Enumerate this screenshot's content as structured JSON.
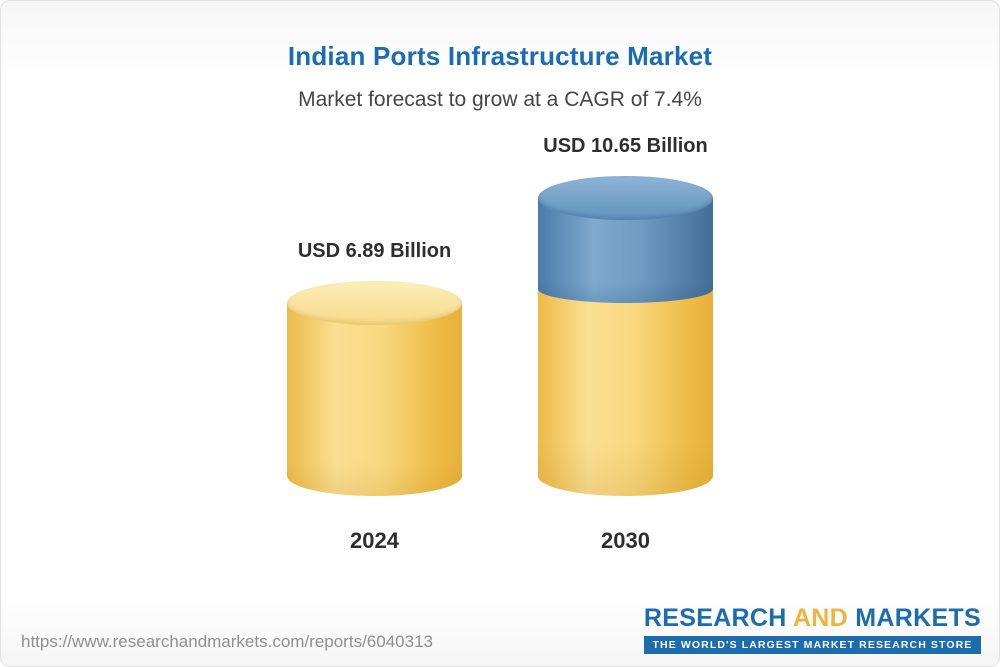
{
  "chart_data": {
    "type": "bar",
    "title": "Indian Ports Infrastructure Market",
    "subtitle": "Market forecast to grow at a CAGR of 7.4%",
    "categories": [
      "2024",
      "2030"
    ],
    "values": [
      6.89,
      10.65
    ],
    "data_labels": [
      "USD 6.89 Billion",
      "USD 10.65 Billion"
    ],
    "unit": "USD Billion",
    "cagr_percent": 7.4,
    "legend": "none",
    "axes": "none",
    "bar_style": "3d-cylinder",
    "colors": {
      "title_blue": "#1b6cb0",
      "bar_2024": "#f2c860",
      "bar_2030_base": "#f2c860",
      "bar_2030_growth": "#5f8fba"
    }
  },
  "footer": {
    "url": "https://www.researchandmarkets.com/reports/6040313",
    "logo": {
      "word1": "RESEARCH",
      "word2": "AND",
      "word3": "MARKETS",
      "tagline": "THE WORLD'S LARGEST MARKET RESEARCH STORE"
    }
  }
}
